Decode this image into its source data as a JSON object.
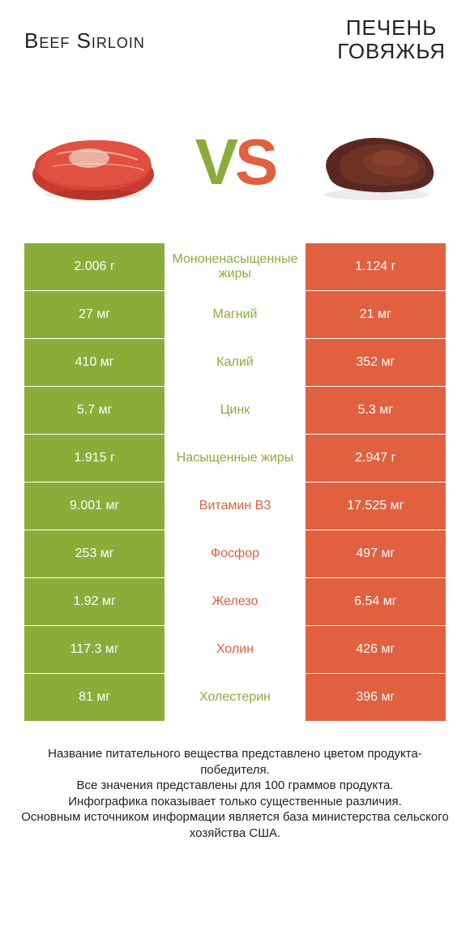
{
  "header": {
    "left": "Beef Sirloin",
    "right_line1": "ПЕЧЕНЬ",
    "right_line2": "ГОВЯЖЬЯ"
  },
  "vs": {
    "v": "V",
    "s": "S"
  },
  "colors": {
    "green": "#8aad3a",
    "orange": "#e0603f",
    "text": "#222222",
    "white": "#ffffff"
  },
  "rows": [
    {
      "left": "2.006 г",
      "mid": "Мононенасыщенные жиры",
      "right": "1.124 г",
      "winner": "left"
    },
    {
      "left": "27 мг",
      "mid": "Магний",
      "right": "21 мг",
      "winner": "left"
    },
    {
      "left": "410 мг",
      "mid": "Калий",
      "right": "352 мг",
      "winner": "left"
    },
    {
      "left": "5.7 мг",
      "mid": "Цинк",
      "right": "5.3 мг",
      "winner": "left"
    },
    {
      "left": "1.915 г",
      "mid": "Насыщенные жиры",
      "right": "2.947 г",
      "winner": "left"
    },
    {
      "left": "9.001 мг",
      "mid": "Витамин B3",
      "right": "17.525 мг",
      "winner": "right"
    },
    {
      "left": "253 мг",
      "mid": "Фосфор",
      "right": "497 мг",
      "winner": "right"
    },
    {
      "left": "1.92 мг",
      "mid": "Железо",
      "right": "6.54 мг",
      "winner": "right"
    },
    {
      "left": "117.3 мг",
      "mid": "Холин",
      "right": "426 мг",
      "winner": "right"
    },
    {
      "left": "81 мг",
      "mid": "Холестерин",
      "right": "396 мг",
      "winner": "left"
    }
  ],
  "footer": {
    "line1": "Название питательного вещества представлено цветом продукта-победителя.",
    "line2": "Все значения представлены для 100 граммов продукта.",
    "line3": "Инфографика показывает только существенные различия.",
    "line4": "Основным источником информации является база министерства сельского хозяйства США."
  }
}
